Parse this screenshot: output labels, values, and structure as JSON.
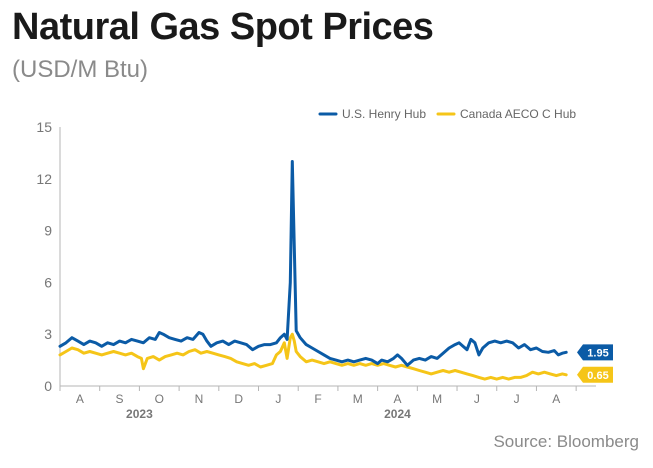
{
  "title": "Natural Gas Spot Prices",
  "subtitle": "(USD/M Btu)",
  "source": "Source: Bloomberg",
  "chart_data": {
    "type": "line",
    "title": "Natural Gas Spot Prices",
    "subtitle": "(USD/M Btu)",
    "ylim": [
      0,
      15
    ],
    "yticks": [
      "0",
      "3",
      "6",
      "9",
      "12",
      "15"
    ],
    "xlim": [
      0,
      13.5
    ],
    "xticks": [
      {
        "pos": 0.5,
        "label": "A"
      },
      {
        "pos": 1.5,
        "label": "S"
      },
      {
        "pos": 2.5,
        "label": "O"
      },
      {
        "pos": 3.5,
        "label": "N"
      },
      {
        "pos": 4.5,
        "label": "D"
      },
      {
        "pos": 5.5,
        "label": "J"
      },
      {
        "pos": 6.5,
        "label": "F"
      },
      {
        "pos": 7.5,
        "label": "M"
      },
      {
        "pos": 8.5,
        "label": "A"
      },
      {
        "pos": 9.5,
        "label": "M"
      },
      {
        "pos": 10.5,
        "label": "J"
      },
      {
        "pos": 11.5,
        "label": "J"
      },
      {
        "pos": 12.5,
        "label": "A"
      }
    ],
    "year_labels": [
      {
        "pos": 2.0,
        "label": "2023"
      },
      {
        "pos": 8.5,
        "label": "2024"
      }
    ],
    "grid": false,
    "legend_position": "top-right",
    "series": [
      {
        "name": "U.S. Henry Hub",
        "color": "#0b5ba6",
        "end_label": "1.95",
        "points": [
          [
            0.0,
            2.3
          ],
          [
            0.15,
            2.5
          ],
          [
            0.3,
            2.8
          ],
          [
            0.45,
            2.6
          ],
          [
            0.6,
            2.4
          ],
          [
            0.75,
            2.6
          ],
          [
            0.9,
            2.5
          ],
          [
            1.05,
            2.3
          ],
          [
            1.2,
            2.5
          ],
          [
            1.35,
            2.4
          ],
          [
            1.5,
            2.6
          ],
          [
            1.65,
            2.5
          ],
          [
            1.8,
            2.7
          ],
          [
            1.95,
            2.6
          ],
          [
            2.1,
            2.5
          ],
          [
            2.25,
            2.8
          ],
          [
            2.4,
            2.7
          ],
          [
            2.5,
            3.1
          ],
          [
            2.6,
            3.0
          ],
          [
            2.75,
            2.8
          ],
          [
            2.9,
            2.7
          ],
          [
            3.05,
            2.6
          ],
          [
            3.2,
            2.8
          ],
          [
            3.35,
            2.7
          ],
          [
            3.5,
            3.1
          ],
          [
            3.6,
            3.0
          ],
          [
            3.7,
            2.6
          ],
          [
            3.8,
            2.3
          ],
          [
            3.95,
            2.5
          ],
          [
            4.1,
            2.6
          ],
          [
            4.25,
            2.4
          ],
          [
            4.4,
            2.6
          ],
          [
            4.55,
            2.5
          ],
          [
            4.7,
            2.4
          ],
          [
            4.85,
            2.1
          ],
          [
            5.0,
            2.3
          ],
          [
            5.15,
            2.4
          ],
          [
            5.3,
            2.4
          ],
          [
            5.45,
            2.5
          ],
          [
            5.55,
            2.8
          ],
          [
            5.65,
            3.0
          ],
          [
            5.72,
            2.7
          ],
          [
            5.8,
            6.0
          ],
          [
            5.85,
            13.0
          ],
          [
            5.9,
            8.0
          ],
          [
            5.95,
            3.2
          ],
          [
            6.05,
            2.8
          ],
          [
            6.2,
            2.4
          ],
          [
            6.35,
            2.2
          ],
          [
            6.5,
            2.0
          ],
          [
            6.65,
            1.8
          ],
          [
            6.8,
            1.6
          ],
          [
            6.95,
            1.5
          ],
          [
            7.1,
            1.4
          ],
          [
            7.25,
            1.5
          ],
          [
            7.4,
            1.4
          ],
          [
            7.55,
            1.5
          ],
          [
            7.7,
            1.6
          ],
          [
            7.85,
            1.5
          ],
          [
            8.0,
            1.3
          ],
          [
            8.1,
            1.5
          ],
          [
            8.25,
            1.4
          ],
          [
            8.4,
            1.6
          ],
          [
            8.5,
            1.8
          ],
          [
            8.6,
            1.6
          ],
          [
            8.75,
            1.2
          ],
          [
            8.9,
            1.5
          ],
          [
            9.05,
            1.6
          ],
          [
            9.2,
            1.5
          ],
          [
            9.35,
            1.7
          ],
          [
            9.5,
            1.6
          ],
          [
            9.65,
            1.9
          ],
          [
            9.8,
            2.2
          ],
          [
            9.95,
            2.4
          ],
          [
            10.05,
            2.5
          ],
          [
            10.15,
            2.3
          ],
          [
            10.25,
            2.1
          ],
          [
            10.35,
            2.7
          ],
          [
            10.45,
            2.5
          ],
          [
            10.55,
            1.8
          ],
          [
            10.65,
            2.2
          ],
          [
            10.8,
            2.5
          ],
          [
            10.95,
            2.6
          ],
          [
            11.1,
            2.5
          ],
          [
            11.25,
            2.6
          ],
          [
            11.4,
            2.5
          ],
          [
            11.55,
            2.2
          ],
          [
            11.7,
            2.4
          ],
          [
            11.85,
            2.1
          ],
          [
            12.0,
            2.2
          ],
          [
            12.15,
            2.0
          ],
          [
            12.3,
            1.95
          ],
          [
            12.45,
            2.05
          ],
          [
            12.55,
            1.8
          ],
          [
            12.65,
            1.9
          ],
          [
            12.75,
            1.95
          ]
        ]
      },
      {
        "name": "Canada AECO C Hub",
        "color": "#f5c518",
        "end_label": "0.65",
        "points": [
          [
            0.0,
            1.8
          ],
          [
            0.15,
            2.0
          ],
          [
            0.3,
            2.2
          ],
          [
            0.45,
            2.1
          ],
          [
            0.6,
            1.9
          ],
          [
            0.75,
            2.0
          ],
          [
            0.9,
            1.9
          ],
          [
            1.05,
            1.8
          ],
          [
            1.2,
            1.9
          ],
          [
            1.35,
            2.0
          ],
          [
            1.5,
            1.9
          ],
          [
            1.65,
            1.8
          ],
          [
            1.8,
            1.9
          ],
          [
            1.95,
            1.7
          ],
          [
            2.05,
            1.6
          ],
          [
            2.1,
            1.0
          ],
          [
            2.2,
            1.6
          ],
          [
            2.35,
            1.7
          ],
          [
            2.5,
            1.5
          ],
          [
            2.65,
            1.7
          ],
          [
            2.8,
            1.8
          ],
          [
            2.95,
            1.9
          ],
          [
            3.1,
            1.8
          ],
          [
            3.25,
            2.0
          ],
          [
            3.4,
            2.1
          ],
          [
            3.55,
            1.9
          ],
          [
            3.7,
            2.0
          ],
          [
            3.85,
            1.9
          ],
          [
            4.0,
            1.8
          ],
          [
            4.15,
            1.7
          ],
          [
            4.3,
            1.6
          ],
          [
            4.45,
            1.4
          ],
          [
            4.6,
            1.3
          ],
          [
            4.75,
            1.2
          ],
          [
            4.9,
            1.3
          ],
          [
            5.05,
            1.1
          ],
          [
            5.2,
            1.2
          ],
          [
            5.35,
            1.3
          ],
          [
            5.45,
            1.8
          ],
          [
            5.55,
            2.0
          ],
          [
            5.65,
            2.5
          ],
          [
            5.72,
            1.6
          ],
          [
            5.8,
            2.8
          ],
          [
            5.85,
            3.0
          ],
          [
            5.9,
            2.6
          ],
          [
            5.95,
            2.0
          ],
          [
            6.05,
            1.7
          ],
          [
            6.2,
            1.4
          ],
          [
            6.35,
            1.5
          ],
          [
            6.5,
            1.4
          ],
          [
            6.65,
            1.3
          ],
          [
            6.8,
            1.4
          ],
          [
            6.95,
            1.3
          ],
          [
            7.1,
            1.2
          ],
          [
            7.25,
            1.3
          ],
          [
            7.4,
            1.2
          ],
          [
            7.55,
            1.3
          ],
          [
            7.7,
            1.2
          ],
          [
            7.85,
            1.3
          ],
          [
            8.0,
            1.2
          ],
          [
            8.15,
            1.3
          ],
          [
            8.3,
            1.2
          ],
          [
            8.45,
            1.1
          ],
          [
            8.6,
            1.2
          ],
          [
            8.75,
            1.1
          ],
          [
            8.9,
            1.0
          ],
          [
            9.05,
            0.9
          ],
          [
            9.2,
            0.8
          ],
          [
            9.35,
            0.7
          ],
          [
            9.5,
            0.8
          ],
          [
            9.65,
            0.9
          ],
          [
            9.8,
            0.8
          ],
          [
            9.95,
            0.9
          ],
          [
            10.1,
            0.8
          ],
          [
            10.25,
            0.7
          ],
          [
            10.4,
            0.6
          ],
          [
            10.55,
            0.5
          ],
          [
            10.7,
            0.4
          ],
          [
            10.85,
            0.5
          ],
          [
            11.0,
            0.4
          ],
          [
            11.15,
            0.5
          ],
          [
            11.3,
            0.4
          ],
          [
            11.45,
            0.5
          ],
          [
            11.6,
            0.5
          ],
          [
            11.75,
            0.6
          ],
          [
            11.9,
            0.8
          ],
          [
            12.05,
            0.7
          ],
          [
            12.2,
            0.8
          ],
          [
            12.35,
            0.7
          ],
          [
            12.5,
            0.6
          ],
          [
            12.65,
            0.7
          ],
          [
            12.75,
            0.65
          ]
        ]
      }
    ]
  }
}
